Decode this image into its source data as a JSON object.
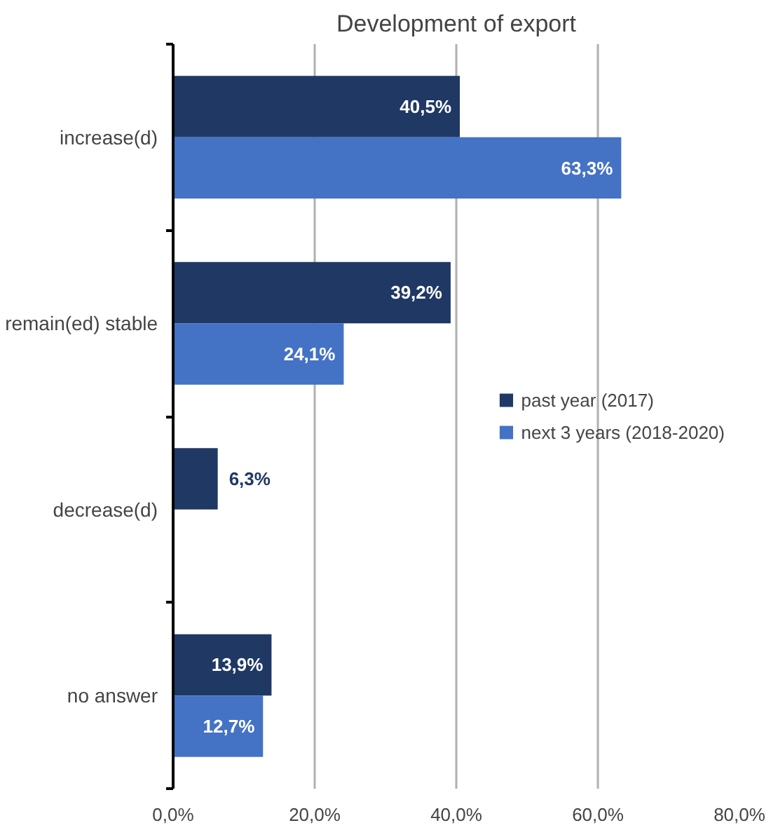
{
  "chart_data": {
    "type": "bar",
    "orientation": "horizontal",
    "title": "Development of export",
    "categories": [
      "increase(d)",
      "remain(ed) stable",
      "decrease(d)",
      "no answer"
    ],
    "series": [
      {
        "name": "past year (2017)",
        "color": "#1f3864",
        "values": [
          40.5,
          39.2,
          6.3,
          13.9
        ],
        "value_labels": [
          "40,5%",
          "39,2%",
          "6,3%",
          "13,9%"
        ]
      },
      {
        "name": "next 3 years (2018-2020)",
        "color": "#4472c4",
        "values": [
          63.3,
          24.1,
          null,
          12.7
        ],
        "value_labels": [
          "63,3%",
          "24,1%",
          null,
          "12,7%"
        ]
      }
    ],
    "xlim": [
      0,
      80
    ],
    "xticks": [
      {
        "value": 0,
        "label": "0,0%"
      },
      {
        "value": 20,
        "label": "20,0%"
      },
      {
        "value": 40,
        "label": "40,0%"
      },
      {
        "value": 60,
        "label": "60,0%"
      },
      {
        "value": 80,
        "label": "80,0%"
      }
    ],
    "grid": "x",
    "legend": "right"
  }
}
